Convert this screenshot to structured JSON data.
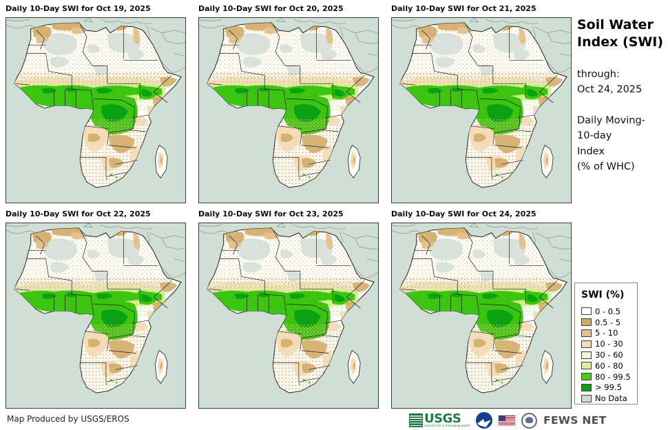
{
  "panels": [
    {
      "title": "Daily 10-Day SWI for Oct 19, 2025"
    },
    {
      "title": "Daily 10-Day SWI for Oct 20, 2025"
    },
    {
      "title": "Daily 10-Day SWI for Oct 21, 2025"
    },
    {
      "title": "Daily 10-Day SWI for Oct 22, 2025"
    },
    {
      "title": "Daily 10-Day SWI for Oct 23, 2025"
    },
    {
      "title": "Daily 10-Day SWI for Oct 24, 2025"
    }
  ],
  "sidebar": {
    "title": "Soil Water Index (SWI)",
    "title_lines": [
      "Soil Water",
      "Index (SWI)"
    ],
    "through_label": "through:",
    "through_date": "Oct 24, 2025",
    "subtitle_lines": [
      "Daily Moving-",
      "10-day",
      "Index",
      "(% of WHC)"
    ]
  },
  "legend": {
    "title": "SWI (%)",
    "items": [
      {
        "label": "0 - 0.5",
        "color": "#ffffff"
      },
      {
        "label": "0.5 - 5",
        "color": "#d2aa66"
      },
      {
        "label": "5 - 10",
        "color": "#e4c28e"
      },
      {
        "label": "10 - 30",
        "color": "#f3ddb8"
      },
      {
        "label": "30 - 60",
        "color": "#eff6d6"
      },
      {
        "label": "60 - 80",
        "color": "#d7f195"
      },
      {
        "label": "80 - 99.5",
        "color": "#46cf10"
      },
      {
        "label": "> 99.5",
        "color": "#0aa112"
      },
      {
        "label": "No Data",
        "color": "#cddcd3"
      }
    ]
  },
  "map": {
    "colors": {
      "ocean": "#cfdfd6",
      "land": "#fdfdf9",
      "nodata": "#d8e2da",
      "tan_med": "#d2aa66",
      "tan_light": "#e4c28e",
      "tan_pale": "#f3ddb8",
      "green_lt": "#d7f195",
      "green": "#3cc410",
      "green_dk": "#0aa112",
      "outline": "#1c1c1c",
      "gray": "#85948b"
    }
  },
  "footer": {
    "credit": "Map Produced by USGS/EROS",
    "usgs_text": "USGS",
    "usgs_tagline": "science for a changing world",
    "fews_net": "FEWS NET"
  }
}
